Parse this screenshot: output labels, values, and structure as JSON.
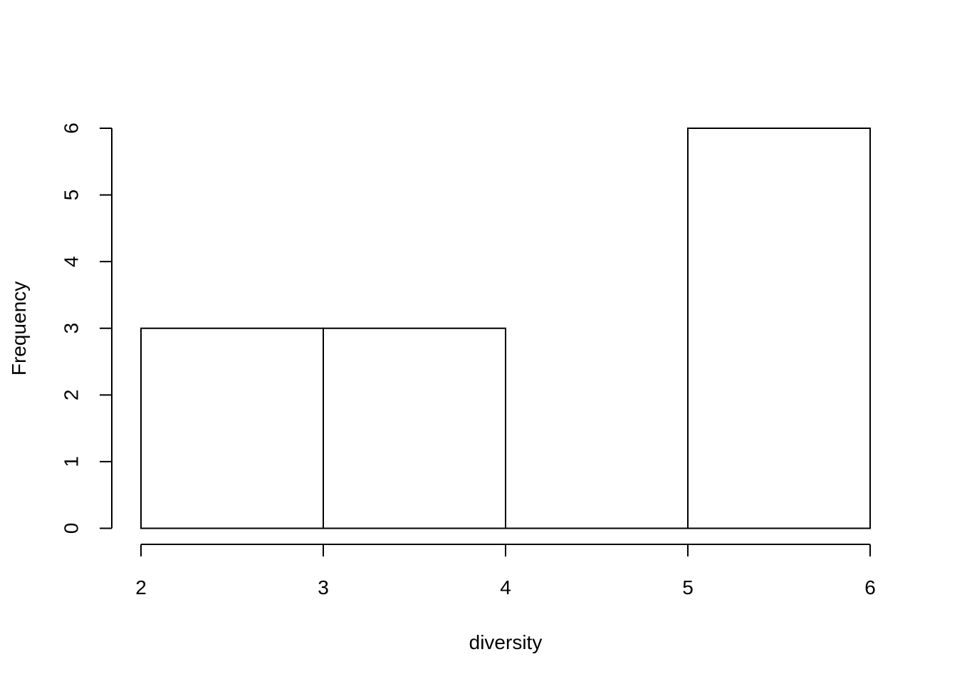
{
  "chart_data": {
    "type": "bar",
    "subtype": "histogram",
    "title": "",
    "xlabel": "diversity",
    "ylabel": "Frequency",
    "bins": [
      {
        "from": 2,
        "to": 3,
        "count": 3
      },
      {
        "from": 3,
        "to": 4,
        "count": 3
      },
      {
        "from": 4,
        "to": 5,
        "count": 0
      },
      {
        "from": 5,
        "to": 6,
        "count": 6
      }
    ],
    "xlim": [
      2,
      6
    ],
    "ylim": [
      0,
      6
    ],
    "x_ticks": [
      "2",
      "3",
      "4",
      "5",
      "6"
    ],
    "y_ticks": [
      "0",
      "1",
      "2",
      "3",
      "4",
      "5",
      "6"
    ],
    "grid": false,
    "legend": "none",
    "bar_fill": "#ffffff",
    "bar_stroke": "#000000"
  }
}
